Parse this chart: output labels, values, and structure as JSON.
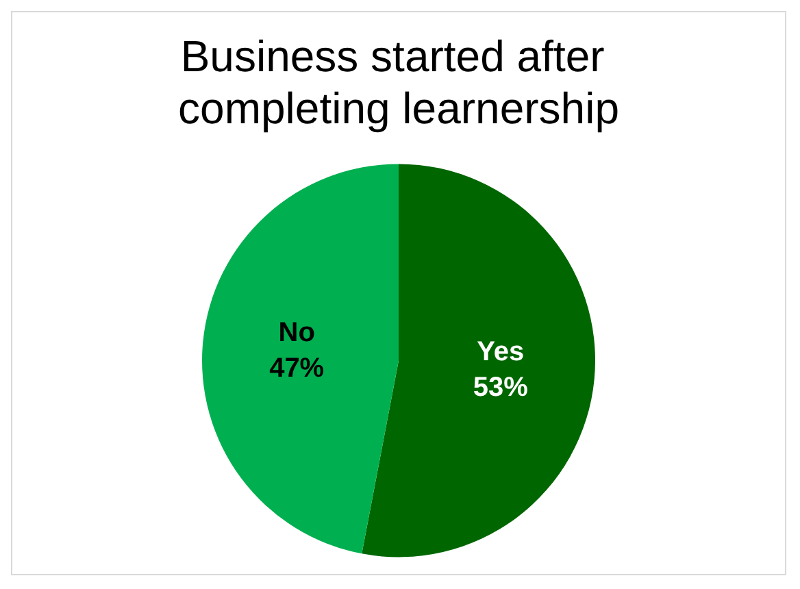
{
  "chart_data": {
    "type": "pie",
    "title": "Business started after completing learnership",
    "categories": [
      "Yes",
      "No"
    ],
    "values": [
      53,
      47
    ],
    "colors": [
      "#006600",
      "#00b050"
    ],
    "value_labels": [
      "53%",
      "47%"
    ],
    "legend": false
  }
}
